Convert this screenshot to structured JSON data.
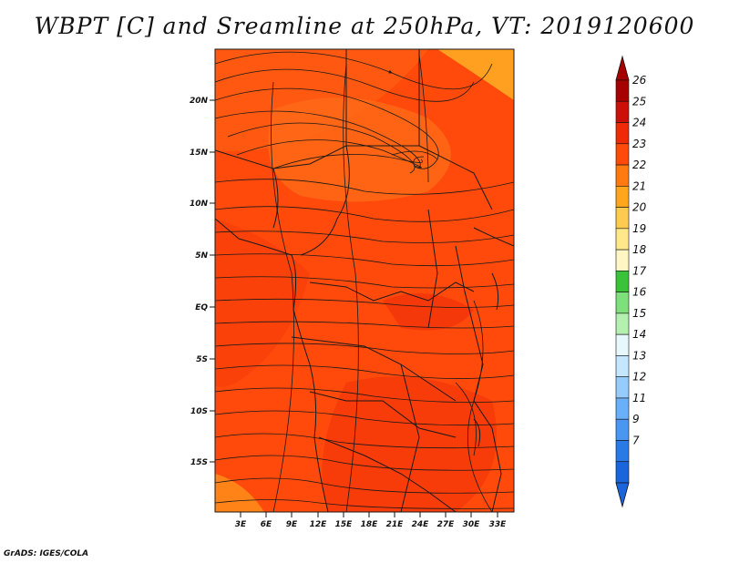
{
  "title": "WBPT [C] and Sreamline at 250hPa, VT: 2019120600",
  "credit": "GrADS: IGES/COLA",
  "map": {
    "lon_range": [
      0,
      35
    ],
    "lat_range": [
      -20,
      25
    ],
    "lon_ticks": [
      "3E",
      "6E",
      "9E",
      "12E",
      "15E",
      "18E",
      "21E",
      "24E",
      "27E",
      "30E",
      "33E"
    ],
    "lat_ticks": [
      "20N",
      "15N",
      "10N",
      "5N",
      "EQ",
      "5S",
      "10S",
      "15S"
    ],
    "dominant_value_range": "23-24",
    "field_colors": {
      "base": "#ff4a0c",
      "light": "#ff6a14",
      "dark": "#f23208",
      "warm": "#ffa020"
    },
    "streamline_color": "#1a1a1a",
    "border_color": "#1a1a1a"
  },
  "colorbar": {
    "labels": [
      "7",
      "9",
      "11",
      "12",
      "13",
      "14",
      "15",
      "16",
      "17",
      "18",
      "19",
      "20",
      "21",
      "22",
      "23",
      "24",
      "25",
      "26"
    ],
    "colors": [
      "#1a64dc",
      "#2a7ae6",
      "#4a96f0",
      "#6ab0f8",
      "#96ccfc",
      "#c4e6fe",
      "#e6f8fc",
      "#b4f0b0",
      "#7ee07a",
      "#3cc23a",
      "#fff6c4",
      "#ffe88c",
      "#ffca50",
      "#ffa61c",
      "#ff7a10",
      "#ff4a0c",
      "#ee2a08",
      "#cc1008",
      "#a60000"
    ],
    "arrow_low_color": "#1a64dc",
    "arrow_high_color": "#a60000"
  }
}
